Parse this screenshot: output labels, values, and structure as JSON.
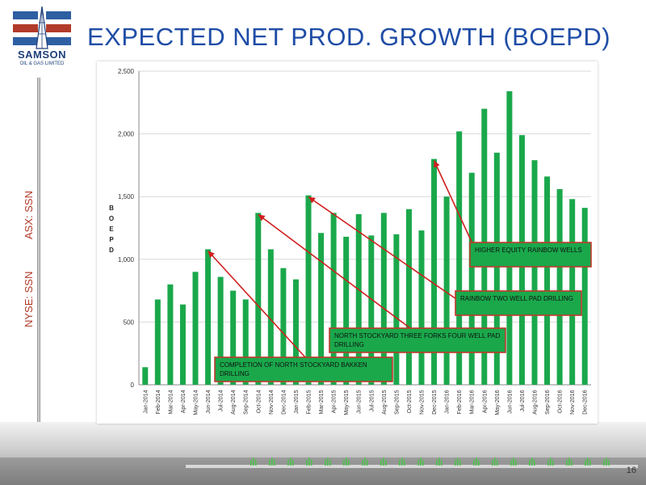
{
  "slide": {
    "title": "EXPECTED NET PROD. GROWTH (BOEPD)",
    "page_number": "16",
    "ticker_nyse": "NYSE: SSN",
    "ticker_asx": "ASX: SSN"
  },
  "logo": {
    "name": "SAMSON",
    "subtitle": "OIL & GAS LIMITED",
    "colors": [
      "#2e5fa3",
      "#b23a2a"
    ]
  },
  "chart_data": {
    "type": "bar",
    "title": "",
    "xlabel": "",
    "ylabel": "BOEPD",
    "ylim": [
      0,
      2500
    ],
    "yticks": [
      "0",
      "500",
      "1,000",
      "1,500",
      "2,000",
      "2,500"
    ],
    "bar_color": "#1aa84b",
    "grid": true,
    "categories": [
      "Jan-2014",
      "Feb-2014",
      "Mar-2014",
      "Apr-2014",
      "May-2014",
      "Jun-2014",
      "Jul-2014",
      "Aug-2014",
      "Sep-2014",
      "Oct-2014",
      "Nov-2014",
      "Dec-2014",
      "Jan-2015",
      "Feb-2015",
      "Mar-2015",
      "Apr-2015",
      "May-2015",
      "Jun-2015",
      "Jul-2015",
      "Aug-2015",
      "Sep-2015",
      "Oct-2015",
      "Nov-2015",
      "Dec-2015",
      "Jan-2016",
      "Feb-2016",
      "Mar-2016",
      "Apr-2016",
      "May-2016",
      "Jun-2016",
      "Jul-2016",
      "Aug-2016",
      "Sep-2016",
      "Oct-2016",
      "Nov-2016",
      "Dec-2016"
    ],
    "values": [
      140,
      680,
      800,
      640,
      900,
      1080,
      860,
      750,
      680,
      1370,
      1080,
      930,
      840,
      1510,
      1210,
      1370,
      1180,
      1360,
      1190,
      1370,
      1200,
      1400,
      1230,
      1800,
      1500,
      2020,
      1690,
      2200,
      1850,
      2340,
      1990,
      1790,
      1660,
      1560,
      1480,
      1410
    ],
    "annotations": [
      {
        "text": "COMPLETION OF NORTH STOCKYARD BAKKEN DRILLING",
        "target_index": 5
      },
      {
        "text": "NORTH STOCKYARD THREE FORKS FOUR WELL PAD DRILLING",
        "target_index": 9
      },
      {
        "text": "RAINBOW TWO WELL PAD DRILLING",
        "target_index": 13
      },
      {
        "text": "HIGHER EQUITY RAINBOW WELLS",
        "target_index": 23
      }
    ]
  }
}
